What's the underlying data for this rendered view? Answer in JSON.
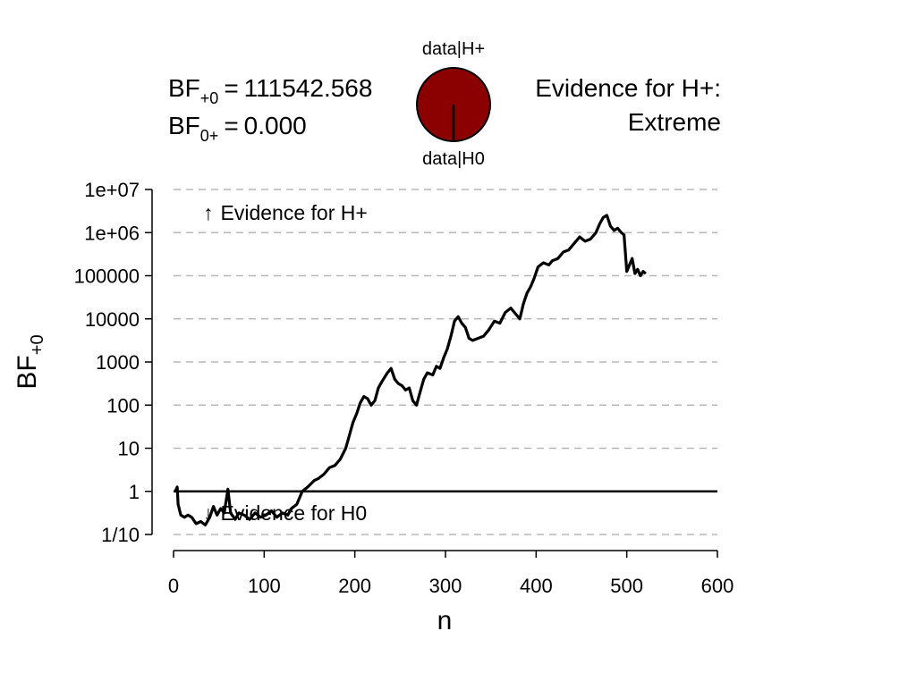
{
  "bf_summary": {
    "bf10_label_main": "BF",
    "bf10_label_sub": "+0",
    "bf10_value": "111542.568",
    "bf01_label_main": "BF",
    "bf01_label_sub": "0+",
    "bf01_value": "0.000",
    "equals": "="
  },
  "pie": {
    "top_label": "data|H+",
    "bottom_label": "data|H0",
    "h1_proportion": 0.99999,
    "fill_color": "#8B0000"
  },
  "evidence_text": {
    "line1": "Evidence for H+:",
    "line2": "Extreme"
  },
  "annotations": {
    "up_arrow": "↑",
    "up_text": "Evidence for H+",
    "down_arrow": "↓",
    "down_text": "Evidence for H0"
  },
  "chart_data": {
    "type": "line",
    "title": "",
    "xlabel": "n",
    "ylabel_main": "BF",
    "ylabel_sub": "+0",
    "xlim": [
      0,
      600
    ],
    "x_ticks": [
      0,
      100,
      200,
      300,
      400,
      500,
      600
    ],
    "y_scale": "log10",
    "ylim_log10": [
      -1,
      7
    ],
    "y_ticks": [
      {
        "label": "1/10",
        "log10": -1
      },
      {
        "label": "1",
        "log10": 0
      },
      {
        "label": "10",
        "log10": 1
      },
      {
        "label": "100",
        "log10": 2
      },
      {
        "label": "1000",
        "log10": 3
      },
      {
        "label": "10000",
        "log10": 4
      },
      {
        "label": "100000",
        "log10": 5
      },
      {
        "label": "1e+06",
        "log10": 6
      },
      {
        "label": "1e+07",
        "log10": 7
      }
    ],
    "reference_line_log10": 0,
    "grid": "horizontal dashed",
    "line_color": "#000000",
    "series": [
      {
        "points": [
          [
            2,
            0.0
          ],
          [
            4,
            0.1
          ],
          [
            5,
            -0.3
          ],
          [
            8,
            -0.55
          ],
          [
            12,
            -0.6
          ],
          [
            16,
            -0.55
          ],
          [
            20,
            -0.6
          ],
          [
            25,
            -0.75
          ],
          [
            30,
            -0.7
          ],
          [
            35,
            -0.78
          ],
          [
            40,
            -0.6
          ],
          [
            44,
            -0.35
          ],
          [
            48,
            -0.55
          ],
          [
            52,
            -0.4
          ],
          [
            56,
            -0.5
          ],
          [
            60,
            0.05
          ],
          [
            63,
            -0.5
          ],
          [
            68,
            -0.65
          ],
          [
            72,
            -0.5
          ],
          [
            78,
            -0.55
          ],
          [
            84,
            -0.65
          ],
          [
            90,
            -0.5
          ],
          [
            96,
            -0.6
          ],
          [
            102,
            -0.55
          ],
          [
            108,
            -0.45
          ],
          [
            114,
            -0.6
          ],
          [
            120,
            -0.5
          ],
          [
            126,
            -0.55
          ],
          [
            130,
            -0.4
          ],
          [
            136,
            -0.3
          ],
          [
            142,
            0.0
          ],
          [
            148,
            0.1
          ],
          [
            155,
            0.25
          ],
          [
            160,
            0.3
          ],
          [
            166,
            0.4
          ],
          [
            172,
            0.55
          ],
          [
            178,
            0.6
          ],
          [
            184,
            0.75
          ],
          [
            190,
            1.0
          ],
          [
            194,
            1.3
          ],
          [
            198,
            1.6
          ],
          [
            202,
            1.8
          ],
          [
            206,
            2.05
          ],
          [
            210,
            2.2
          ],
          [
            214,
            2.15
          ],
          [
            218,
            2.0
          ],
          [
            222,
            2.1
          ],
          [
            226,
            2.4
          ],
          [
            230,
            2.55
          ],
          [
            236,
            2.75
          ],
          [
            240,
            2.85
          ],
          [
            244,
            2.6
          ],
          [
            248,
            2.5
          ],
          [
            252,
            2.45
          ],
          [
            256,
            2.35
          ],
          [
            260,
            2.4
          ],
          [
            264,
            2.1
          ],
          [
            268,
            2.0
          ],
          [
            272,
            2.3
          ],
          [
            276,
            2.6
          ],
          [
            280,
            2.75
          ],
          [
            286,
            2.7
          ],
          [
            290,
            2.9
          ],
          [
            294,
            2.85
          ],
          [
            298,
            3.1
          ],
          [
            302,
            3.3
          ],
          [
            306,
            3.6
          ],
          [
            310,
            3.95
          ],
          [
            314,
            4.05
          ],
          [
            318,
            3.9
          ],
          [
            322,
            3.8
          ],
          [
            326,
            3.55
          ],
          [
            330,
            3.5
          ],
          [
            336,
            3.55
          ],
          [
            342,
            3.6
          ],
          [
            348,
            3.75
          ],
          [
            354,
            3.95
          ],
          [
            360,
            3.9
          ],
          [
            366,
            4.15
          ],
          [
            372,
            4.25
          ],
          [
            378,
            4.1
          ],
          [
            382,
            4.0
          ],
          [
            386,
            4.35
          ],
          [
            390,
            4.6
          ],
          [
            394,
            4.75
          ],
          [
            398,
            4.95
          ],
          [
            402,
            5.2
          ],
          [
            408,
            5.3
          ],
          [
            414,
            5.25
          ],
          [
            418,
            5.35
          ],
          [
            424,
            5.4
          ],
          [
            430,
            5.55
          ],
          [
            436,
            5.6
          ],
          [
            442,
            5.75
          ],
          [
            448,
            5.9
          ],
          [
            454,
            5.8
          ],
          [
            460,
            5.85
          ],
          [
            466,
            6.0
          ],
          [
            470,
            6.2
          ],
          [
            474,
            6.35
          ],
          [
            478,
            6.4
          ],
          [
            482,
            6.15
          ],
          [
            486,
            6.05
          ],
          [
            490,
            6.1
          ],
          [
            494,
            6.0
          ],
          [
            497,
            5.95
          ],
          [
            500,
            5.1
          ],
          [
            503,
            5.25
          ],
          [
            506,
            5.4
          ],
          [
            509,
            5.05
          ],
          [
            512,
            5.15
          ],
          [
            515,
            5.0
          ],
          [
            518,
            5.1
          ],
          [
            521,
            5.05
          ]
        ]
      }
    ]
  }
}
